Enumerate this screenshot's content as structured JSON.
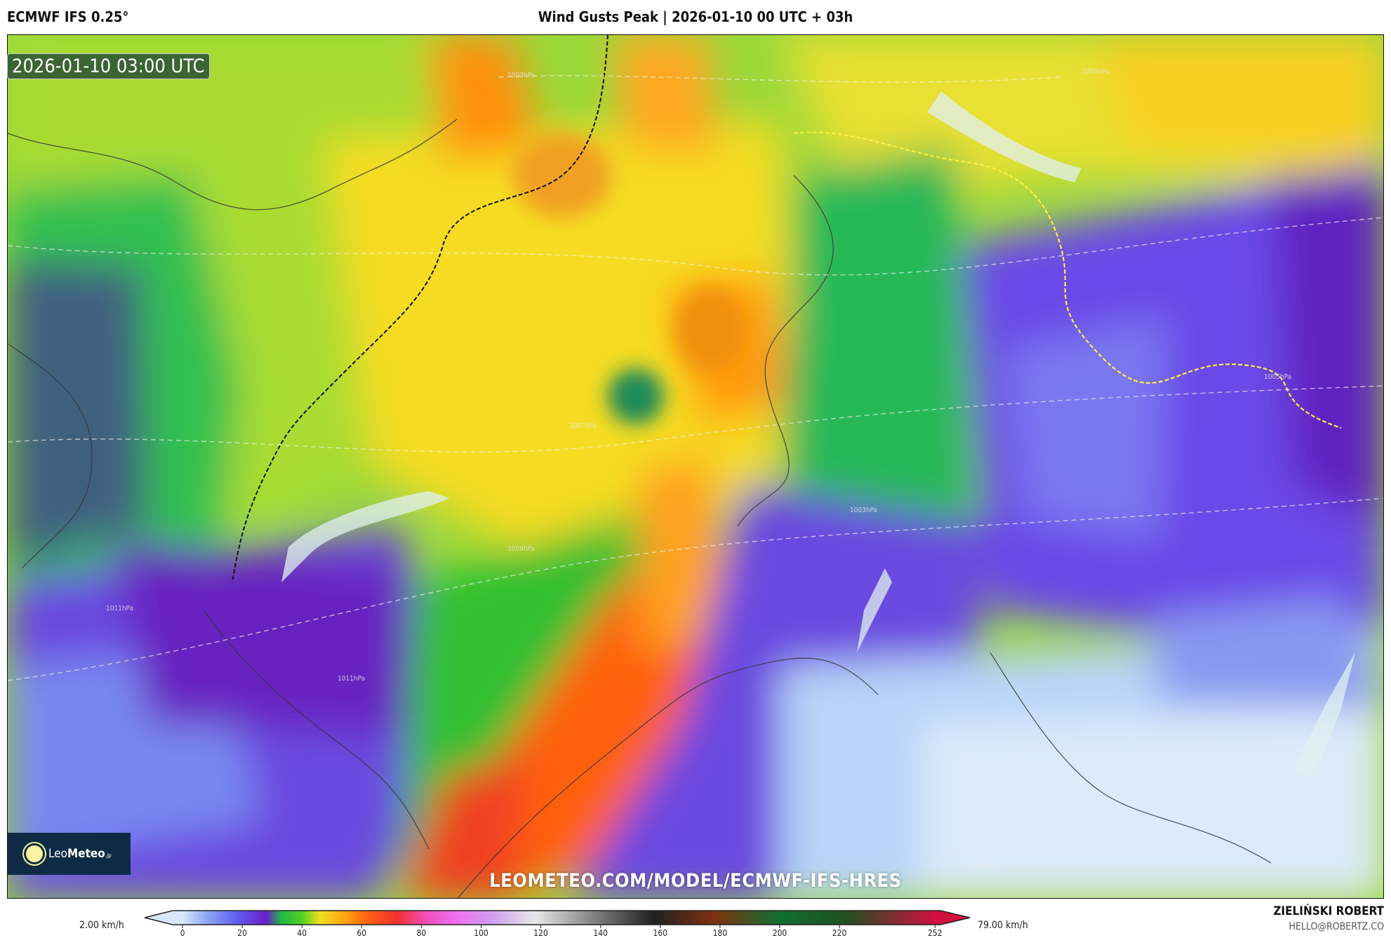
{
  "header": {
    "model": "ECMWF IFS 0.25°",
    "title": "Wind Gusts Peak | 2026-01-10 00 UTC + 03h"
  },
  "map": {
    "valid_time": "2026-01-10 03:00 UTC",
    "watermark": "LEOMETEO.COM/MODEL/ECMWF-IFS-HRES",
    "logo": {
      "text_light": "Leo",
      "text_bold": "Meteo",
      "suffix": ".jp"
    },
    "isobar_labels": [
      "1003hPa",
      "1003hPa",
      "1007hPa",
      "1009hPa",
      "1011hPa",
      "1011hPa",
      "1003hPa",
      "1001hPa",
      "1005hPa"
    ]
  },
  "colorbar": {
    "min_label": "2.00 km/h",
    "max_label": "79.00 km/h",
    "ticks": [
      "0",
      "20",
      "40",
      "60",
      "80",
      "100",
      "120",
      "140",
      "160",
      "180",
      "200",
      "220",
      "252"
    ],
    "stops": [
      [
        0,
        "#d8e8fa"
      ],
      [
        8,
        "#8fa8f5"
      ],
      [
        18,
        "#5f5ff0"
      ],
      [
        28,
        "#6a1fc8"
      ],
      [
        33,
        "#20b848"
      ],
      [
        40,
        "#50d020"
      ],
      [
        46,
        "#f0e020"
      ],
      [
        55,
        "#ffa010"
      ],
      [
        62,
        "#ff6010"
      ],
      [
        72,
        "#f03030"
      ],
      [
        82,
        "#f050c0"
      ],
      [
        92,
        "#f070f0"
      ],
      [
        104,
        "#d0a0f0"
      ],
      [
        118,
        "#e8e8e8"
      ],
      [
        138,
        "#808080"
      ],
      [
        158,
        "#202020"
      ],
      [
        178,
        "#803010"
      ],
      [
        200,
        "#107030"
      ],
      [
        222,
        "#205020"
      ],
      [
        252,
        "#d01040"
      ]
    ]
  },
  "footer": {
    "author": "ZIELIŃSKI ROBERT",
    "email": "HELLO@ROBERTZ.CO"
  }
}
